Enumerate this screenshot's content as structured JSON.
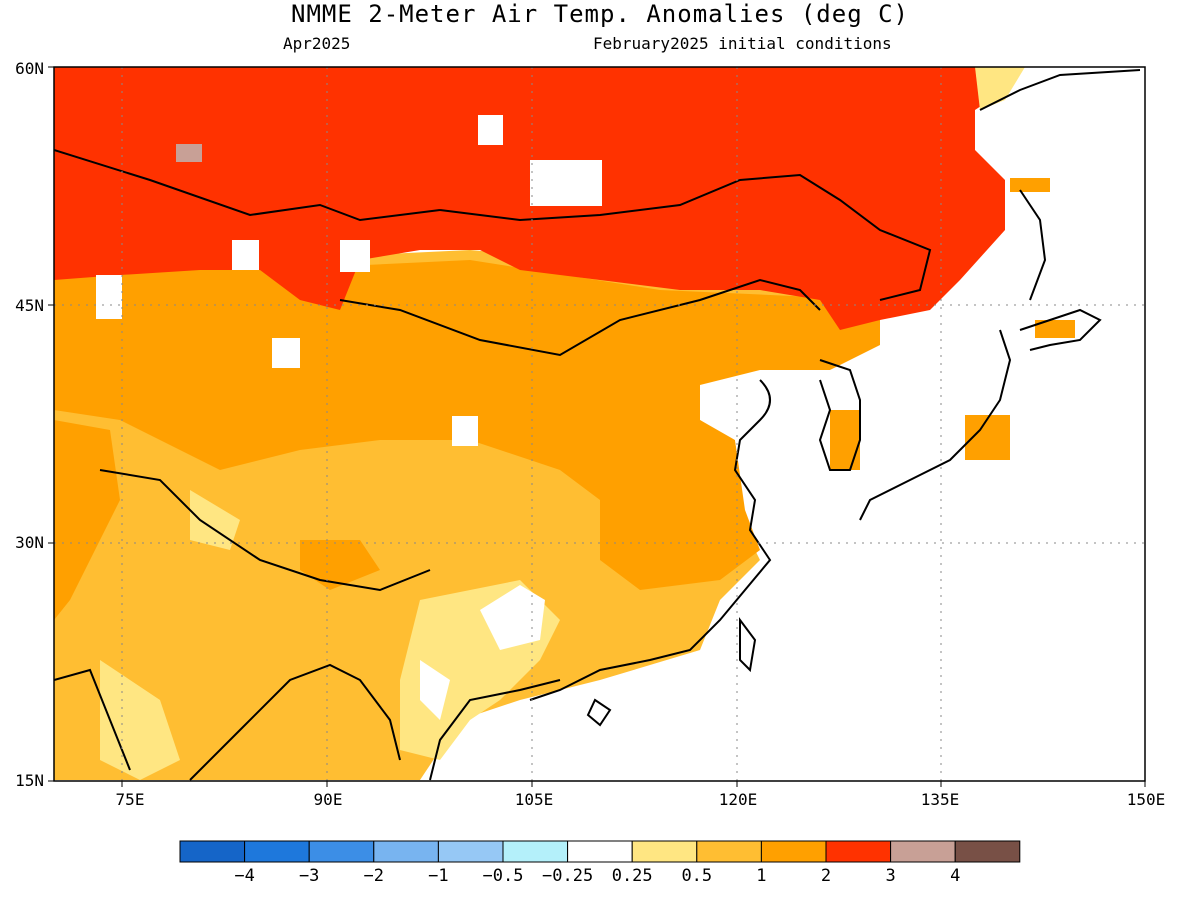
{
  "header": {
    "title": "NMME 2-Meter Air Temp. Anomalies (deg C)",
    "valid_month": "Apr2025",
    "init": "February2025 initial conditions"
  },
  "map": {
    "lat_labels": [
      "60N",
      "45N",
      "30N",
      "15N"
    ],
    "lon_labels": [
      "75E",
      "90E",
      "105E",
      "120E",
      "135E",
      "150E"
    ],
    "lat_range": [
      15,
      60
    ],
    "lon_range": [
      68,
      150
    ]
  },
  "colorbar": {
    "labels": [
      "−4",
      "−3",
      "−2",
      "−1",
      "−0.5",
      "−0.25",
      "0.25",
      "0.5",
      "1",
      "2",
      "3",
      "4"
    ],
    "colors": [
      "#1565c8",
      "#1e78dc",
      "#3c8ee6",
      "#78b4f0",
      "#96c8f5",
      "#b4f0fa",
      "#ffffff",
      "#ffe682",
      "#ffbe32",
      "#ffa000",
      "#ff3200",
      "#c8a096",
      "#785046"
    ]
  }
}
